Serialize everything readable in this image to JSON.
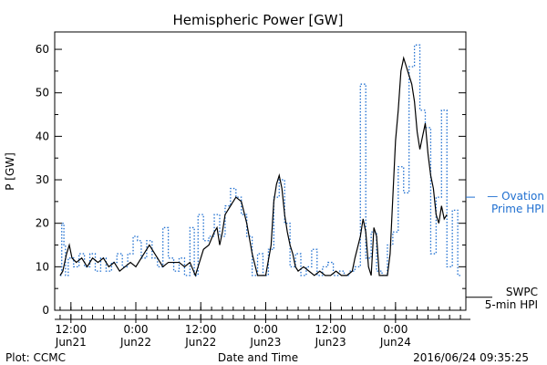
{
  "chart_data": {
    "type": "line",
    "title": "Hemispheric Power [GW]",
    "xlabel": "Date and Time",
    "ylabel": "P [GW]",
    "ylim": [
      0,
      64
    ],
    "yticks": [
      0,
      10,
      20,
      30,
      40,
      50,
      60
    ],
    "xlim_hours": [
      -3.5,
      9.4
    ],
    "x_ticks": [
      {
        "hour": -12,
        "time": "12:00",
        "date": "Jun21"
      },
      {
        "hour": 0,
        "time": "0:00",
        "date": "Jun22"
      },
      {
        "hour": 12,
        "time": "12:00",
        "date": "Jun22"
      },
      {
        "hour": 24,
        "time": "0:00",
        "date": "Jun23"
      },
      {
        "hour": 36,
        "time": "12:00",
        "date": "Jun23"
      },
      {
        "hour": 48,
        "time": "0:00",
        "date": "Jun24"
      }
    ],
    "x_unit": "hours relative to 2016-06-22 00:00 UT",
    "series": [
      {
        "name": "Ovation Prime HPI",
        "legend": [
          "— Ovation",
          "Prime HPI"
        ],
        "color": "#1f6fd0",
        "style": "dotted-step",
        "points": [
          [
            -14,
            8
          ],
          [
            -13.7,
            20
          ],
          [
            -13.3,
            15
          ],
          [
            -13,
            8
          ],
          [
            -12.5,
            12
          ],
          [
            -11.5,
            10
          ],
          [
            -10.5,
            13
          ],
          [
            -9.5,
            10
          ],
          [
            -8.5,
            13
          ],
          [
            -7.5,
            9
          ],
          [
            -6.5,
            12
          ],
          [
            -5.5,
            9
          ],
          [
            -4.5,
            11
          ],
          [
            -3.5,
            13
          ],
          [
            -2.5,
            10
          ],
          [
            -1.5,
            13
          ],
          [
            -0.5,
            17
          ],
          [
            0.3,
            16
          ],
          [
            1,
            12
          ],
          [
            2,
            16
          ],
          [
            3,
            12
          ],
          [
            4,
            10
          ],
          [
            5,
            19
          ],
          [
            6,
            12
          ],
          [
            7,
            9
          ],
          [
            8,
            12
          ],
          [
            9,
            8
          ],
          [
            10,
            19
          ],
          [
            10.8,
            8
          ],
          [
            11.5,
            22
          ],
          [
            12.5,
            16
          ],
          [
            13.5,
            17
          ],
          [
            14.5,
            22
          ],
          [
            15.5,
            17
          ],
          [
            16.5,
            24
          ],
          [
            17.5,
            28
          ],
          [
            18.5,
            26
          ],
          [
            19.5,
            22
          ],
          [
            20.5,
            17
          ],
          [
            21.5,
            8
          ],
          [
            22.5,
            13
          ],
          [
            23.5,
            8
          ],
          [
            24.5,
            14
          ],
          [
            25.5,
            26
          ],
          [
            26.5,
            30
          ],
          [
            27.5,
            20
          ],
          [
            28.5,
            10
          ],
          [
            29.5,
            13
          ],
          [
            30.5,
            8
          ],
          [
            31.5,
            10
          ],
          [
            32.5,
            14
          ],
          [
            33.5,
            8
          ],
          [
            34.5,
            10
          ],
          [
            35.5,
            11
          ],
          [
            36.5,
            8
          ],
          [
            37.5,
            9
          ],
          [
            38.5,
            8
          ],
          [
            39.5,
            9
          ],
          [
            40.5,
            10
          ],
          [
            41.5,
            52
          ],
          [
            42.5,
            12
          ],
          [
            43.5,
            18
          ],
          [
            44.5,
            9
          ],
          [
            45.5,
            8
          ],
          [
            46.5,
            15
          ],
          [
            47.5,
            18
          ],
          [
            48.5,
            33
          ],
          [
            49.5,
            27
          ],
          [
            50.5,
            56
          ],
          [
            51.5,
            61
          ],
          [
            52.5,
            46
          ],
          [
            53.5,
            42
          ],
          [
            54.5,
            13
          ],
          [
            55.5,
            26
          ],
          [
            56.5,
            46
          ],
          [
            57.5,
            10
          ],
          [
            58.5,
            23
          ],
          [
            59.5,
            8
          ],
          [
            60,
            8
          ]
        ]
      },
      {
        "name": "SWPC 5-min HPI",
        "legend": [
          "SWPC",
          "5-min HPI"
        ],
        "color": "#000000",
        "style": "solid",
        "points": [
          [
            -14,
            8
          ],
          [
            -13.5,
            9
          ],
          [
            -12.8,
            13
          ],
          [
            -12.3,
            15
          ],
          [
            -11.8,
            12
          ],
          [
            -11,
            11
          ],
          [
            -10,
            12
          ],
          [
            -9,
            10
          ],
          [
            -8,
            12
          ],
          [
            -7,
            11
          ],
          [
            -6,
            12
          ],
          [
            -5,
            10
          ],
          [
            -4,
            11
          ],
          [
            -3,
            9
          ],
          [
            -2,
            10
          ],
          [
            -1,
            11
          ],
          [
            0,
            10
          ],
          [
            1,
            12
          ],
          [
            2,
            14
          ],
          [
            2.5,
            15
          ],
          [
            3,
            14
          ],
          [
            4,
            12
          ],
          [
            5,
            10
          ],
          [
            6,
            11
          ],
          [
            7,
            11
          ],
          [
            8,
            11
          ],
          [
            9,
            10
          ],
          [
            10,
            11
          ],
          [
            11,
            8
          ],
          [
            12,
            12
          ],
          [
            12.5,
            14
          ],
          [
            13.5,
            15
          ],
          [
            14.5,
            18
          ],
          [
            15,
            19
          ],
          [
            15.5,
            15
          ],
          [
            16,
            18
          ],
          [
            16.5,
            22
          ],
          [
            17.5,
            24
          ],
          [
            18.5,
            26
          ],
          [
            19.5,
            25
          ],
          [
            20.5,
            20
          ],
          [
            21.5,
            13
          ],
          [
            22.5,
            8
          ],
          [
            23,
            8
          ],
          [
            24,
            8
          ],
          [
            25,
            15
          ],
          [
            25.5,
            25
          ],
          [
            26,
            29
          ],
          [
            26.5,
            31
          ],
          [
            27,
            28
          ],
          [
            27.5,
            22
          ],
          [
            28,
            18
          ],
          [
            28.5,
            15
          ],
          [
            29,
            13
          ],
          [
            29.5,
            10
          ],
          [
            30,
            9
          ],
          [
            31,
            10
          ],
          [
            32,
            9
          ],
          [
            33,
            8
          ],
          [
            34,
            9
          ],
          [
            35,
            8
          ],
          [
            36,
            8
          ],
          [
            37,
            9
          ],
          [
            38,
            8
          ],
          [
            39,
            8
          ],
          [
            40,
            9
          ],
          [
            40.5,
            12
          ],
          [
            41.5,
            17
          ],
          [
            42,
            21
          ],
          [
            42.5,
            18
          ],
          [
            43,
            10
          ],
          [
            43.5,
            8
          ],
          [
            44,
            19
          ],
          [
            44.5,
            17
          ],
          [
            45,
            8
          ],
          [
            46,
            8
          ],
          [
            46.5,
            8
          ],
          [
            47,
            13
          ],
          [
            47.5,
            26
          ],
          [
            48,
            39
          ],
          [
            48.5,
            46
          ],
          [
            49,
            55
          ],
          [
            49.5,
            58
          ],
          [
            50,
            56
          ],
          [
            50.5,
            54
          ],
          [
            51,
            52
          ],
          [
            51.5,
            48
          ],
          [
            52,
            41
          ],
          [
            52.5,
            37
          ],
          [
            53,
            40
          ],
          [
            53.5,
            43
          ],
          [
            54,
            36
          ],
          [
            54.5,
            31
          ],
          [
            55,
            28
          ],
          [
            55.5,
            22
          ],
          [
            56,
            20
          ],
          [
            56.5,
            24
          ],
          [
            57,
            21
          ],
          [
            57.5,
            22
          ]
        ]
      }
    ],
    "footer": {
      "left": "Plot: CCMC",
      "right": "2016/06/24 09:35:25"
    }
  }
}
